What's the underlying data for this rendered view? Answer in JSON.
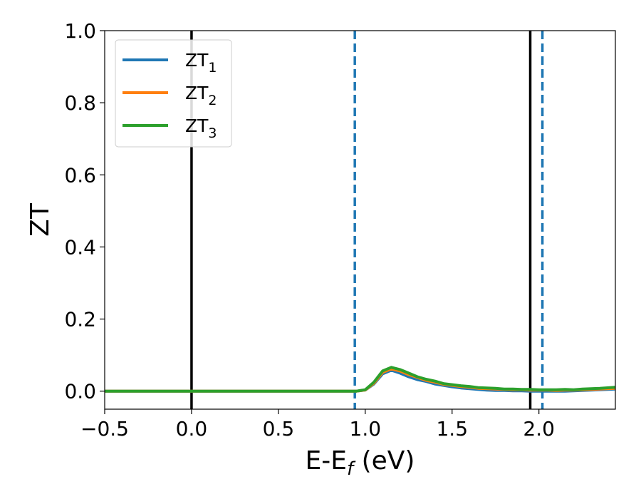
{
  "chart_data": {
    "type": "line",
    "xlabel": {
      "main": "E-E",
      "sub": "f",
      "tail": " (eV)"
    },
    "ylabel": "ZT",
    "xlim": [
      -0.5,
      2.44
    ],
    "ylim": [
      -0.05,
      1.0
    ],
    "xticks": [
      -0.5,
      0.0,
      0.5,
      1.0,
      1.5,
      2.0
    ],
    "xtick_labels": [
      "−0.5",
      "0.0",
      "0.5",
      "1.0",
      "1.5",
      "2.0"
    ],
    "yticks": [
      0.0,
      0.2,
      0.4,
      0.6,
      0.8,
      1.0
    ],
    "ytick_labels": [
      "0.0",
      "0.2",
      "0.4",
      "0.6",
      "0.8",
      "1.0"
    ],
    "grid": false,
    "legend_position": "top-left",
    "series": [
      {
        "name": "ZT",
        "name_sub": "1",
        "color": "#1f77b4",
        "x": [
          -0.5,
          0.9,
          0.95,
          1.0,
          1.05,
          1.1,
          1.15,
          1.2,
          1.25,
          1.3,
          1.35,
          1.4,
          1.45,
          1.5,
          1.55,
          1.6,
          1.65,
          1.7,
          1.75,
          1.8,
          1.85,
          1.9,
          1.95,
          2.0,
          2.05,
          2.1,
          2.15,
          2.2,
          2.25,
          2.3,
          2.35,
          2.44
        ],
        "y": [
          0.0,
          0.0,
          0.0,
          0.003,
          0.02,
          0.048,
          0.058,
          0.05,
          0.04,
          0.032,
          0.027,
          0.02,
          0.016,
          0.012,
          0.009,
          0.007,
          0.005,
          0.003,
          0.002,
          0.002,
          0.001,
          0.001,
          0.0,
          0.0,
          0.0,
          0.0,
          0.0,
          0.001,
          0.002,
          0.003,
          0.004,
          0.006
        ]
      },
      {
        "name": "ZT",
        "name_sub": "2",
        "color": "#ff7f0e",
        "x": [
          -0.5,
          0.9,
          0.95,
          1.0,
          1.05,
          1.1,
          1.15,
          1.2,
          1.25,
          1.3,
          1.35,
          1.4,
          1.45,
          1.5,
          1.55,
          1.6,
          1.65,
          1.7,
          1.75,
          1.8,
          1.85,
          1.9,
          1.95,
          2.0,
          2.05,
          2.1,
          2.15,
          2.2,
          2.25,
          2.3,
          2.35,
          2.44
        ],
        "y": [
          0.0,
          0.0,
          0.0,
          0.003,
          0.022,
          0.052,
          0.062,
          0.056,
          0.046,
          0.038,
          0.03,
          0.025,
          0.019,
          0.016,
          0.013,
          0.011,
          0.008,
          0.007,
          0.006,
          0.005,
          0.004,
          0.004,
          0.003,
          0.003,
          0.003,
          0.002,
          0.003,
          0.003,
          0.004,
          0.005,
          0.006,
          0.008
        ]
      },
      {
        "name": "ZT",
        "name_sub": "3",
        "color": "#2ca02c",
        "x": [
          -0.5,
          0.9,
          0.95,
          1.0,
          1.05,
          1.1,
          1.15,
          1.2,
          1.25,
          1.3,
          1.35,
          1.4,
          1.45,
          1.5,
          1.55,
          1.6,
          1.65,
          1.7,
          1.75,
          1.8,
          1.85,
          1.9,
          1.95,
          2.0,
          2.05,
          2.1,
          2.15,
          2.2,
          2.25,
          2.3,
          2.35,
          2.44
        ],
        "y": [
          0.0,
          0.0,
          0.0,
          0.004,
          0.025,
          0.056,
          0.066,
          0.06,
          0.05,
          0.04,
          0.033,
          0.028,
          0.021,
          0.018,
          0.015,
          0.013,
          0.01,
          0.009,
          0.008,
          0.006,
          0.006,
          0.005,
          0.005,
          0.004,
          0.004,
          0.004,
          0.005,
          0.004,
          0.006,
          0.007,
          0.008,
          0.011
        ]
      }
    ],
    "vlines": [
      {
        "x": 0.0,
        "style": "solid",
        "color": "#000000"
      },
      {
        "x": 1.95,
        "style": "solid",
        "color": "#000000"
      },
      {
        "x": 0.94,
        "style": "dashed",
        "color": "#1f77b4"
      },
      {
        "x": 2.02,
        "style": "dashed",
        "color": "#1f77b4"
      }
    ]
  }
}
